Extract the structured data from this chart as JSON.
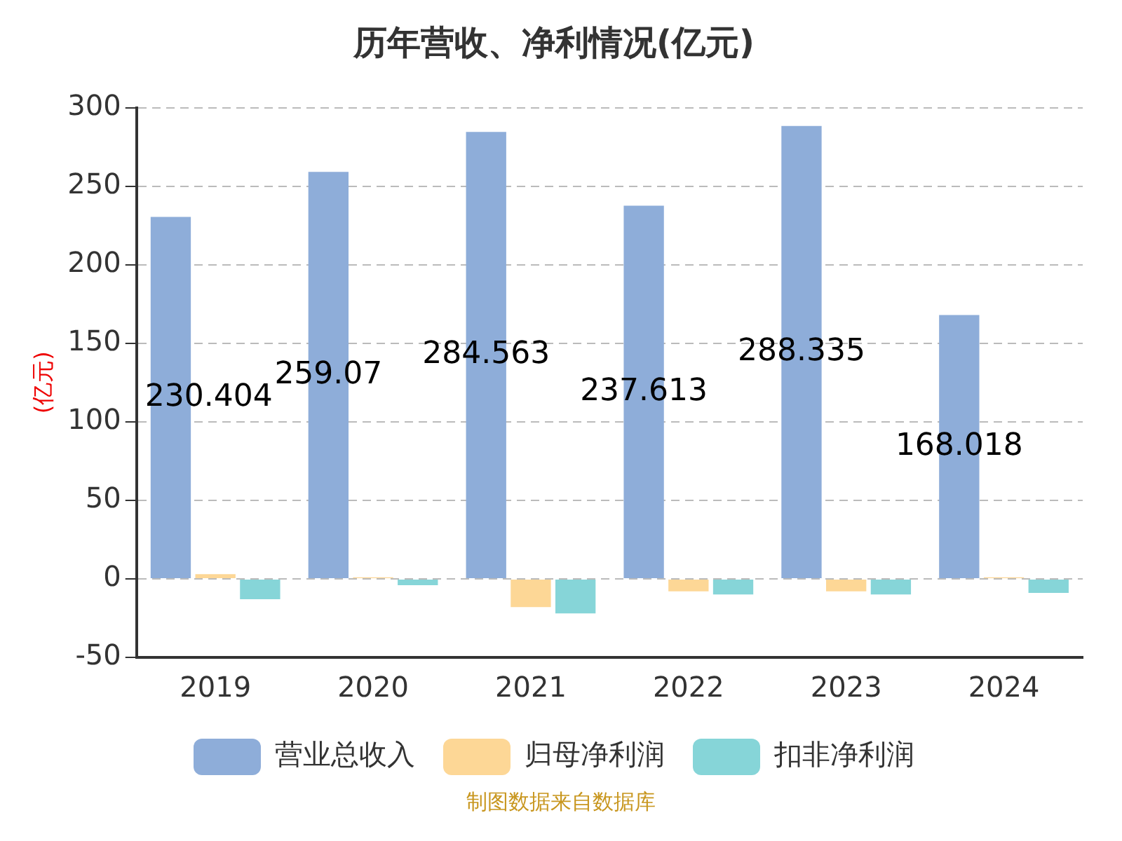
{
  "chart_data": {
    "type": "bar",
    "title": "历年营收、净利情况(亿元)",
    "ylabel": "(亿元)",
    "categories": [
      "2019",
      "2020",
      "2021",
      "2022",
      "2023",
      "2024"
    ],
    "series": [
      {
        "name": "营业总收入",
        "color": "#8eadd9",
        "values": [
          230.404,
          259.07,
          284.563,
          237.613,
          288.335,
          168.018
        ],
        "value_labels": [
          "230.404",
          "259.07",
          "284.563",
          "237.613",
          "288.335",
          "168.018"
        ]
      },
      {
        "name": "归母净利润",
        "color": "#fdd796",
        "values": [
          3,
          1,
          -18,
          -8,
          -8,
          1
        ]
      },
      {
        "name": "扣非净利润",
        "color": "#86d5d8",
        "values": [
          -13,
          -4,
          -22,
          -10,
          -10,
          -9
        ]
      }
    ],
    "ylim": [
      -50,
      300
    ],
    "yticks": [
      -50,
      0,
      50,
      100,
      150,
      200,
      250,
      300
    ],
    "grid": "y",
    "legend": "bottom",
    "annotations": [
      "制图数据来自数据库"
    ]
  }
}
